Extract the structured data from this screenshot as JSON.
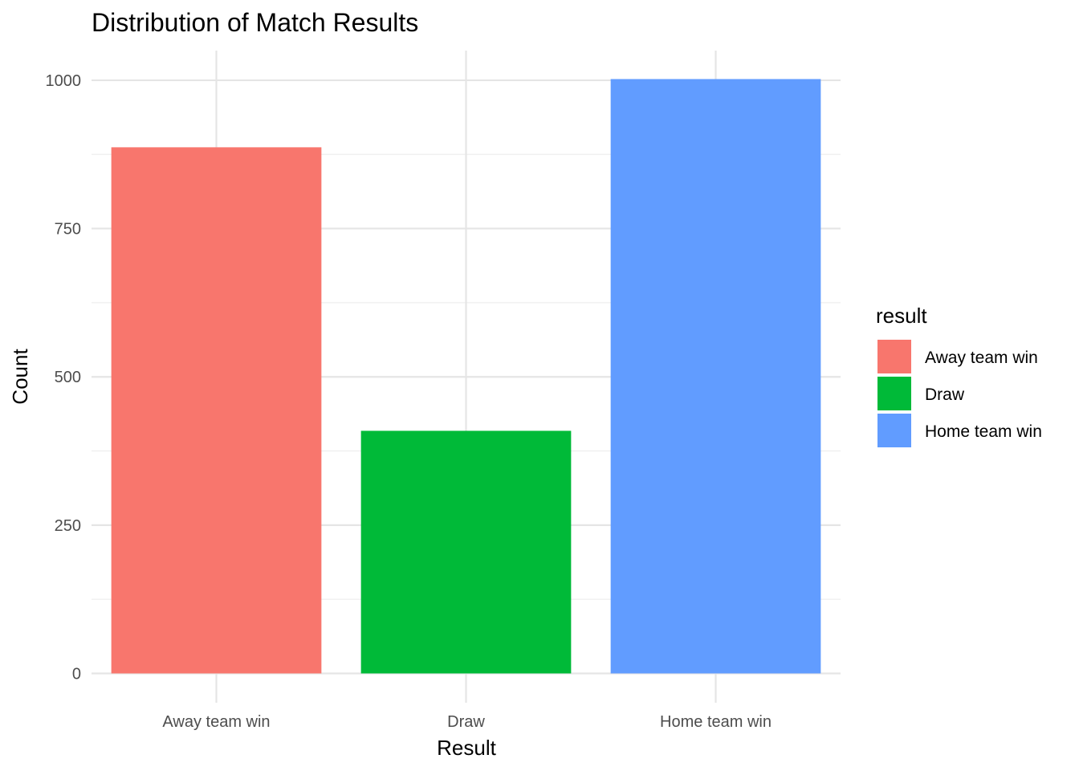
{
  "chart_data": {
    "type": "bar",
    "title": "Distribution of Match Results",
    "xlabel": "Result",
    "ylabel": "Count",
    "categories": [
      "Away team win",
      "Draw",
      "Home team win"
    ],
    "values": [
      887,
      409,
      1002
    ],
    "colors": [
      "#F8766D",
      "#00BA38",
      "#619CFF"
    ],
    "ylim": [
      0,
      1050
    ],
    "yticks": [
      0,
      250,
      500,
      750,
      1000
    ],
    "grid": true,
    "legend": {
      "title": "result",
      "position": "right",
      "entries": [
        "Away team win",
        "Draw",
        "Home team win"
      ]
    }
  }
}
